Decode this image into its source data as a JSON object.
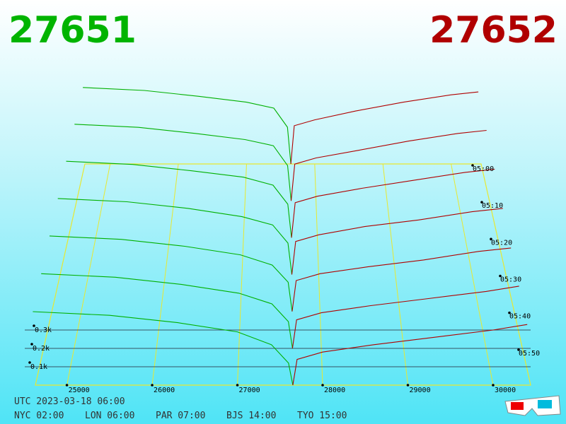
{
  "header": {
    "left": "27651",
    "right": "27652"
  },
  "chart_data": {
    "type": "depth3d",
    "bid_color": "#00b000",
    "ask_color": "#b00000",
    "xlim": [
      24630,
      30440
    ],
    "xticks": [
      25000,
      26000,
      27000,
      28000,
      29000,
      30000
    ],
    "yticks": [
      {
        "value": 100,
        "label": "0.1k"
      },
      {
        "value": 200,
        "label": "0.2k"
      },
      {
        "value": 300,
        "label": "0.3k"
      }
    ],
    "zticks": [
      "05:00",
      "05:10",
      "05:20",
      "05:30",
      "05:40",
      "05:50"
    ],
    "bid_prices": [
      24600,
      25500,
      26300,
      27000,
      27400,
      27600,
      27650
    ],
    "ask_prices": [
      27650,
      27700,
      28000,
      28600,
      29300,
      30000,
      30400
    ],
    "slices": [
      {
        "bids": [
          520,
          500,
          460,
          420,
          380,
          250,
          0
        ],
        "asks": [
          0,
          260,
          300,
          360,
          420,
          470,
          490
        ]
      },
      {
        "bids": [
          500,
          480,
          440,
          400,
          360,
          230,
          0
        ],
        "asks": [
          0,
          240,
          280,
          330,
          390,
          440,
          460
        ]
      },
      {
        "bids": [
          480,
          460,
          420,
          380,
          330,
          210,
          0
        ],
        "asks": [
          0,
          220,
          260,
          310,
          360,
          410,
          430
        ]
      },
      {
        "bids": [
          460,
          440,
          400,
          350,
          300,
          190,
          0
        ],
        "asks": [
          0,
          200,
          240,
          290,
          330,
          380,
          400
        ]
      },
      {
        "bids": [
          440,
          420,
          380,
          330,
          270,
          170,
          0
        ],
        "asks": [
          0,
          180,
          220,
          260,
          300,
          350,
          370
        ]
      },
      {
        "bids": [
          420,
          400,
          360,
          310,
          250,
          150,
          0
        ],
        "asks": [
          0,
          160,
          200,
          240,
          280,
          320,
          350
        ]
      },
      {
        "bids": [
          400,
          380,
          340,
          290,
          220,
          120,
          0
        ],
        "asks": [
          0,
          140,
          180,
          220,
          260,
          300,
          330
        ]
      }
    ]
  },
  "footer": {
    "utc": "UTC 2023-03-18 06:00",
    "cities": [
      "NYC 02:00",
      "LON 06:00",
      "PAR 07:00",
      "BJS 14:00",
      "TYO 15:00"
    ]
  }
}
